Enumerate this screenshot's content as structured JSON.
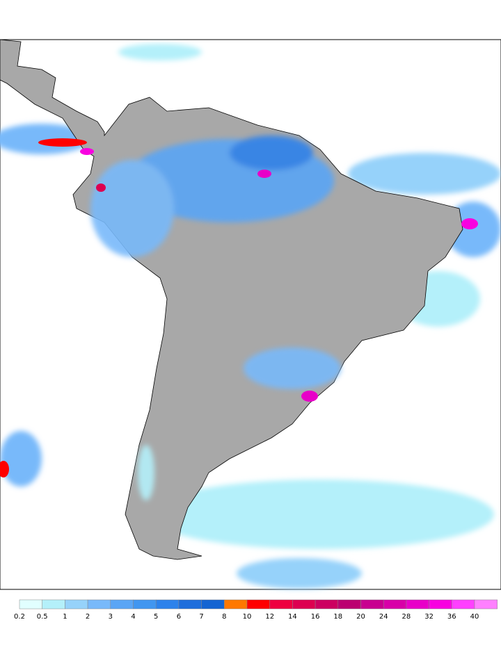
{
  "colorbar": {
    "labels": [
      "0.2",
      "0.5",
      "1",
      "2",
      "3",
      "4",
      "5",
      "6",
      "7",
      "8",
      "10",
      "12",
      "14",
      "16",
      "18",
      "20",
      "24",
      "28",
      "32",
      "36",
      "40"
    ],
    "colors": [
      "#e1ffff",
      "#b4f0fa",
      "#96d2fa",
      "#78b9fa",
      "#5aa5f5",
      "#4196f0",
      "#2d82eb",
      "#1e6edc",
      "#1464d2",
      "#ff7800",
      "#ff0000",
      "#ee0040",
      "#dd0050",
      "#cc0060",
      "#bb0070",
      "#c80090",
      "#d800a8",
      "#e800c8",
      "#f800e0",
      "#ff40ff",
      "#ff80ff"
    ]
  }
}
